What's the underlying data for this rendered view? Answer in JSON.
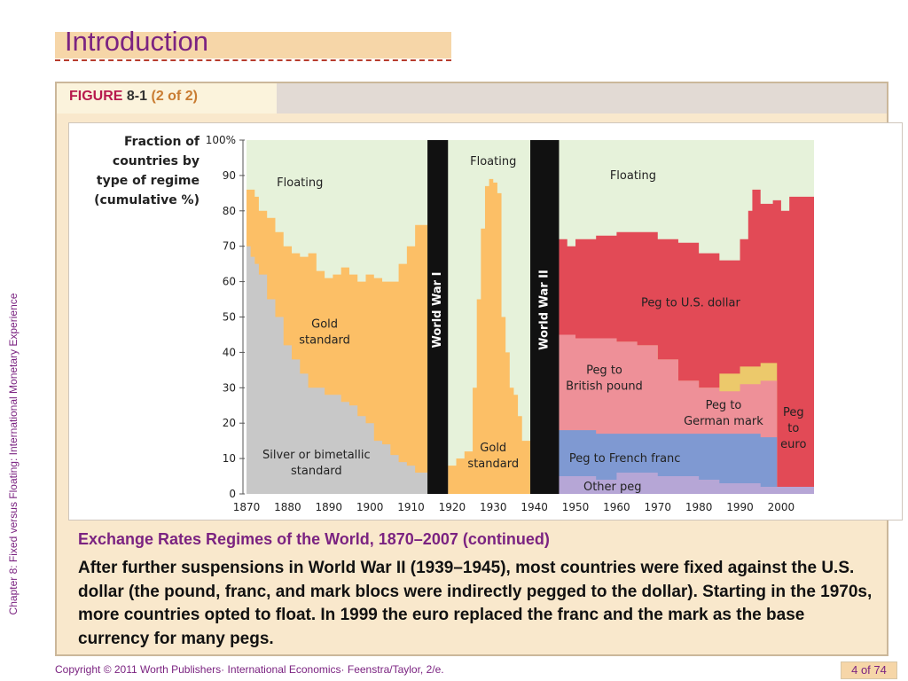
{
  "slide": {
    "title": "Introduction",
    "side_text": "Chapter 8: Fixed versus Floating: International Monetary Experience",
    "figure_word": "FIGURE",
    "figure_number": "8-1",
    "figure_part": "(2 of 2)",
    "caption_title": "Exchange Rates Regimes of the World, 1870–2007 (continued)",
    "caption_body": "After further suspensions in World War II (1939–1945), most countries were fixed against the U.S. dollar (the pound, franc, and mark blocs were indirectly pegged to the dollar). Starting in the 1970s, more countries opted to float. In 1999 the euro replaced the franc and the mark as the base currency for many pegs.",
    "footer": "Copyright © 2011 Worth Publishers· International Economics· Feenstra/Taylor, 2/e.",
    "page": "4 of 74"
  },
  "chart_data": {
    "type": "area",
    "stacked": true,
    "ylabel": "Fraction of countries by type of regime (cumulative %)",
    "ylim": [
      0,
      100
    ],
    "y_ticks": [
      "0",
      "10",
      "20",
      "30",
      "40",
      "50",
      "60",
      "70",
      "80",
      "90",
      "100%"
    ],
    "xlim": [
      1870,
      2008
    ],
    "x_ticks": [
      "1870",
      "1880",
      "1890",
      "1900",
      "1910",
      "1920",
      "1930",
      "1940",
      "1950",
      "1960",
      "1970",
      "1980",
      "1990",
      "2000"
    ],
    "war_bars": [
      {
        "label": "World War I",
        "from": 1914,
        "to": 1919
      },
      {
        "label": "World War II",
        "from": 1939,
        "to": 1946
      }
    ],
    "series": [
      {
        "name": "Silver or bimetallic standard",
        "color": "#c8c8c8",
        "points": [
          [
            1870,
            70
          ],
          [
            1871,
            67
          ],
          [
            1872,
            65
          ],
          [
            1873,
            62
          ],
          [
            1875,
            55
          ],
          [
            1877,
            50
          ],
          [
            1879,
            42
          ],
          [
            1881,
            38
          ],
          [
            1883,
            34
          ],
          [
            1885,
            30
          ],
          [
            1887,
            30
          ],
          [
            1889,
            28
          ],
          [
            1891,
            28
          ],
          [
            1893,
            26
          ],
          [
            1895,
            25
          ],
          [
            1897,
            22
          ],
          [
            1899,
            20
          ],
          [
            1901,
            15
          ],
          [
            1903,
            14
          ],
          [
            1905,
            11
          ],
          [
            1907,
            9
          ],
          [
            1909,
            8
          ],
          [
            1911,
            6
          ],
          [
            1914,
            5
          ]
        ]
      },
      {
        "name": "Gold standard",
        "color": "#fcbf66",
        "points": [
          [
            1870,
            86
          ],
          [
            1871,
            86
          ],
          [
            1872,
            84
          ],
          [
            1873,
            80
          ],
          [
            1875,
            78
          ],
          [
            1877,
            74
          ],
          [
            1879,
            70
          ],
          [
            1881,
            68
          ],
          [
            1883,
            67
          ],
          [
            1885,
            68
          ],
          [
            1887,
            63
          ],
          [
            1889,
            61
          ],
          [
            1891,
            62
          ],
          [
            1893,
            64
          ],
          [
            1895,
            62
          ],
          [
            1897,
            60
          ],
          [
            1899,
            62
          ],
          [
            1901,
            61
          ],
          [
            1903,
            60
          ],
          [
            1905,
            60
          ],
          [
            1907,
            65
          ],
          [
            1909,
            70
          ],
          [
            1911,
            76
          ],
          [
            1914,
            77
          ]
        ]
      },
      {
        "name": "Gold standard",
        "color": "#fcbf66",
        "points": [
          [
            1919,
            8
          ],
          [
            1921,
            10
          ],
          [
            1923,
            12
          ],
          [
            1925,
            30
          ],
          [
            1926,
            55
          ],
          [
            1927,
            75
          ],
          [
            1928,
            87
          ],
          [
            1929,
            89
          ],
          [
            1930,
            88
          ],
          [
            1931,
            85
          ],
          [
            1932,
            50
          ],
          [
            1933,
            40
          ],
          [
            1934,
            30
          ],
          [
            1935,
            28
          ],
          [
            1936,
            22
          ],
          [
            1937,
            15
          ],
          [
            1939,
            10
          ]
        ]
      },
      {
        "name": "Other peg",
        "color": "#b6a6d6",
        "points": [
          [
            1946,
            5
          ],
          [
            1950,
            5
          ],
          [
            1955,
            4
          ],
          [
            1960,
            6
          ],
          [
            1965,
            6
          ],
          [
            1970,
            5
          ],
          [
            1975,
            5
          ],
          [
            1980,
            4
          ],
          [
            1985,
            3
          ],
          [
            1990,
            3
          ],
          [
            1995,
            2
          ],
          [
            2008,
            2
          ]
        ]
      },
      {
        "name": "Peg to French franc",
        "color": "#7f99d2",
        "points": [
          [
            1946,
            18
          ],
          [
            1950,
            18
          ],
          [
            1955,
            17
          ],
          [
            1960,
            17
          ],
          [
            1965,
            17
          ],
          [
            1970,
            17
          ],
          [
            1975,
            17
          ],
          [
            1980,
            17
          ],
          [
            1985,
            17
          ],
          [
            1990,
            17
          ],
          [
            1995,
            16
          ],
          [
            1999,
            16
          ]
        ]
      },
      {
        "name": "Peg to British pound",
        "color": "#ee9098",
        "points": [
          [
            1946,
            45
          ],
          [
            1950,
            44
          ],
          [
            1955,
            44
          ],
          [
            1960,
            43
          ],
          [
            1965,
            42
          ],
          [
            1970,
            38
          ],
          [
            1975,
            32
          ],
          [
            1980,
            30
          ],
          [
            1985,
            29
          ],
          [
            1990,
            31
          ],
          [
            1995,
            32
          ],
          [
            1999,
            32
          ]
        ]
      },
      {
        "name": "Peg to German mark",
        "color": "#ecc96b",
        "points": [
          [
            1946,
            45
          ],
          [
            1950,
            44
          ],
          [
            1955,
            44
          ],
          [
            1960,
            43
          ],
          [
            1965,
            42
          ],
          [
            1970,
            38
          ],
          [
            1975,
            32
          ],
          [
            1980,
            30
          ],
          [
            1985,
            34
          ],
          [
            1990,
            36
          ],
          [
            1995,
            37
          ],
          [
            1999,
            36
          ]
        ]
      },
      {
        "name": "Peg to U.S. dollar",
        "color": "#e24a56",
        "points": [
          [
            1946,
            72
          ],
          [
            1948,
            70
          ],
          [
            1950,
            72
          ],
          [
            1955,
            73
          ],
          [
            1960,
            74
          ],
          [
            1965,
            74
          ],
          [
            1970,
            72
          ],
          [
            1975,
            71
          ],
          [
            1980,
            68
          ],
          [
            1985,
            66
          ],
          [
            1988,
            66
          ],
          [
            1990,
            72
          ],
          [
            1992,
            80
          ],
          [
            1993,
            86
          ],
          [
            1995,
            82
          ],
          [
            1998,
            83
          ],
          [
            2000,
            80
          ],
          [
            2002,
            84
          ],
          [
            2005,
            84
          ],
          [
            2008,
            84
          ]
        ]
      },
      {
        "name": "Peg to euro",
        "color": "#c4d6ee",
        "points": [
          [
            1999,
            38
          ],
          [
            2002,
            36
          ],
          [
            2005,
            35
          ],
          [
            2008,
            35
          ]
        ]
      },
      {
        "name": "Floating",
        "color": "#e6f2da",
        "points": [
          [
            1870,
            100
          ],
          [
            2008,
            100
          ]
        ]
      }
    ],
    "annotations": [
      "Floating",
      "Floating",
      "Floating",
      "Gold standard",
      "Gold standard",
      "Silver or bimetallic standard",
      "Peg to U.S. dollar",
      "Peg to British pound",
      "Peg to German mark",
      "Peg to French franc",
      "Other peg",
      "Peg to euro"
    ]
  }
}
